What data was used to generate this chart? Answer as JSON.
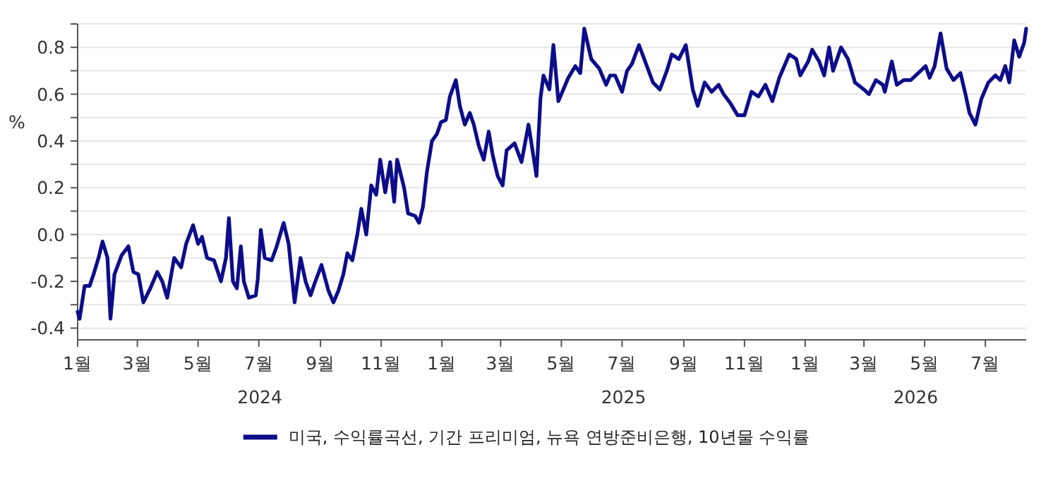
{
  "chart_data": {
    "type": "line",
    "ylabel": "%",
    "grid": "y",
    "legend": "bottom",
    "xlim": [
      "2024-01-01",
      "2026-08-11"
    ],
    "ylim": [
      -0.45,
      0.9
    ],
    "yticks": [
      {
        "value": -0.4,
        "label": "-0.4"
      },
      {
        "value": -0.3,
        "label": null
      },
      {
        "value": -0.2,
        "label": "-0.2"
      },
      {
        "value": -0.1,
        "label": null
      },
      {
        "value": 0,
        "label": "0.0"
      },
      {
        "value": 0.1,
        "label": null
      },
      {
        "value": 0.2,
        "label": "0.2"
      },
      {
        "value": 0.3,
        "label": null
      },
      {
        "value": 0.4,
        "label": "0.4"
      },
      {
        "value": 0.5,
        "label": null
      },
      {
        "value": 0.6,
        "label": "0.6"
      },
      {
        "value": 0.7,
        "label": null
      },
      {
        "value": 0.8,
        "label": "0.8"
      },
      {
        "value": 0.9,
        "label": null
      }
    ],
    "xticks": [
      {
        "value": "2024-01-01",
        "label": "1월"
      },
      {
        "value": "2024-03-01",
        "label": "3월"
      },
      {
        "value": "2024-05-01",
        "label": "5월"
      },
      {
        "value": "2024-07-01",
        "label": "7월"
      },
      {
        "value": "2024-09-01",
        "label": "9월"
      },
      {
        "value": "2024-11-01",
        "label": "11월"
      },
      {
        "value": "2025-01-01",
        "label": "1월"
      },
      {
        "value": "2025-03-01",
        "label": "3월"
      },
      {
        "value": "2025-05-01",
        "label": "5월"
      },
      {
        "value": "2025-07-01",
        "label": "7월"
      },
      {
        "value": "2025-09-01",
        "label": "9월"
      },
      {
        "value": "2025-11-01",
        "label": "11월"
      },
      {
        "value": "2026-01-01",
        "label": "1월"
      },
      {
        "value": "2026-03-01",
        "label": "3월"
      },
      {
        "value": "2026-05-01",
        "label": "5월"
      },
      {
        "value": "2026-07-01",
        "label": "7월"
      }
    ],
    "annotations": [
      "2024",
      "2025",
      "2026"
    ],
    "x": [
      "2024-01-01",
      "2024-01-03",
      "2024-01-08",
      "2024-01-13",
      "2024-01-17",
      "2024-01-22",
      "2024-01-26",
      "2024-01-31",
      "2024-02-03",
      "2024-02-07",
      "2024-02-14",
      "2024-02-21",
      "2024-02-26",
      "2024-03-02",
      "2024-03-07",
      "2024-03-14",
      "2024-03-21",
      "2024-03-26",
      "2024-03-31",
      "2024-04-07",
      "2024-04-14",
      "2024-04-19",
      "2024-04-26",
      "2024-05-01",
      "2024-05-05",
      "2024-05-10",
      "2024-05-17",
      "2024-05-24",
      "2024-05-29",
      "2024-06-01",
      "2024-06-05",
      "2024-06-09",
      "2024-06-13",
      "2024-06-16",
      "2024-06-21",
      "2024-06-28",
      "2024-06-30",
      "2024-07-03",
      "2024-07-07",
      "2024-07-14",
      "2024-07-19",
      "2024-07-26",
      "2024-07-31",
      "2024-08-06",
      "2024-08-12",
      "2024-08-17",
      "2024-08-22",
      "2024-08-26",
      "2024-09-02",
      "2024-09-09",
      "2024-09-14",
      "2024-09-19",
      "2024-09-24",
      "2024-09-28",
      "2024-10-03",
      "2024-10-08",
      "2024-10-12",
      "2024-10-17",
      "2024-10-22",
      "2024-10-27",
      "2024-10-31",
      "2024-11-05",
      "2024-11-10",
      "2024-11-14",
      "2024-11-17",
      "2024-11-24",
      "2024-11-28",
      "2024-12-05",
      "2024-12-09",
      "2024-12-13",
      "2024-12-17",
      "2024-12-22",
      "2024-12-27",
      "2024-12-31",
      "2025-01-05",
      "2025-01-09",
      "2025-01-15",
      "2025-01-19",
      "2025-01-24",
      "2025-01-29",
      "2025-02-02",
      "2025-02-07",
      "2025-02-12",
      "2025-02-17",
      "2025-02-21",
      "2025-02-26",
      "2025-03-03",
      "2025-03-07",
      "2025-03-15",
      "2025-03-22",
      "2025-03-29",
      "2025-04-06",
      "2025-04-10",
      "2025-04-13",
      "2025-04-19",
      "2025-04-23",
      "2025-04-28",
      "2025-05-08",
      "2025-05-15",
      "2025-05-20",
      "2025-05-24",
      "2025-05-31",
      "2025-06-08",
      "2025-06-15",
      "2025-06-19",
      "2025-06-24",
      "2025-07-01",
      "2025-07-06",
      "2025-07-11",
      "2025-07-18",
      "2025-07-25",
      "2025-08-01",
      "2025-08-08",
      "2025-08-15",
      "2025-08-20",
      "2025-08-27",
      "2025-09-03",
      "2025-09-10",
      "2025-09-15",
      "2025-09-22",
      "2025-09-29",
      "2025-10-06",
      "2025-10-11",
      "2025-10-18",
      "2025-10-25",
      "2025-11-01",
      "2025-11-08",
      "2025-11-15",
      "2025-11-22",
      "2025-11-29",
      "2025-12-06",
      "2025-12-16",
      "2025-12-23",
      "2025-12-27",
      "2026-01-04",
      "2026-01-08",
      "2026-01-15",
      "2026-01-20",
      "2026-01-25",
      "2026-01-29",
      "2026-02-06",
      "2026-02-13",
      "2026-02-20",
      "2026-03-01",
      "2026-03-06",
      "2026-03-13",
      "2026-03-20",
      "2026-03-22",
      "2026-03-29",
      "2026-04-03",
      "2026-04-10",
      "2026-04-17",
      "2026-04-27",
      "2026-05-02",
      "2026-05-06",
      "2026-05-11",
      "2026-05-17",
      "2026-05-23",
      "2026-05-30",
      "2026-06-06",
      "2026-06-11",
      "2026-06-15",
      "2026-06-21",
      "2026-06-27",
      "2026-07-04",
      "2026-07-11",
      "2026-07-16",
      "2026-07-21",
      "2026-07-25",
      "2026-07-30",
      "2026-08-04",
      "2026-08-09",
      "2026-08-11"
    ],
    "series": [
      {
        "name": "미국, 수익률곡선, 기간 프리미엄, 뉴욕 연방준비은행, 10년물 수익률",
        "color": "#0d0d8a",
        "values": [
          -0.33,
          -0.36,
          -0.22,
          -0.22,
          -0.17,
          -0.1,
          -0.03,
          -0.1,
          -0.36,
          -0.17,
          -0.09,
          -0.05,
          -0.16,
          -0.17,
          -0.29,
          -0.23,
          -0.16,
          -0.2,
          -0.27,
          -0.1,
          -0.14,
          -0.04,
          0.04,
          -0.04,
          -0.01,
          -0.1,
          -0.11,
          -0.2,
          -0.1,
          0.07,
          -0.2,
          -0.23,
          -0.05,
          -0.2,
          -0.27,
          -0.26,
          -0.19,
          0.02,
          -0.1,
          -0.11,
          -0.05,
          0.05,
          -0.04,
          -0.29,
          -0.1,
          -0.2,
          -0.26,
          -0.21,
          -0.13,
          -0.24,
          -0.29,
          -0.24,
          -0.17,
          -0.08,
          -0.11,
          0.0,
          0.11,
          0.0,
          0.21,
          0.17,
          0.32,
          0.18,
          0.31,
          0.14,
          0.32,
          0.2,
          0.09,
          0.08,
          0.05,
          0.12,
          0.27,
          0.4,
          0.43,
          0.48,
          0.49,
          0.59,
          0.66,
          0.55,
          0.47,
          0.52,
          0.47,
          0.38,
          0.32,
          0.44,
          0.34,
          0.25,
          0.21,
          0.36,
          0.39,
          0.31,
          0.47,
          0.25,
          0.58,
          0.68,
          0.62,
          0.81,
          0.57,
          0.67,
          0.72,
          0.69,
          0.88,
          0.75,
          0.71,
          0.64,
          0.68,
          0.68,
          0.61,
          0.7,
          0.73,
          0.81,
          0.73,
          0.65,
          0.62,
          0.7,
          0.77,
          0.75,
          0.81,
          0.62,
          0.55,
          0.65,
          0.61,
          0.64,
          0.6,
          0.56,
          0.51,
          0.51,
          0.61,
          0.59,
          0.64,
          0.57,
          0.67,
          0.77,
          0.75,
          0.68,
          0.74,
          0.79,
          0.74,
          0.68,
          0.8,
          0.7,
          0.8,
          0.75,
          0.65,
          0.62,
          0.6,
          0.66,
          0.64,
          0.61,
          0.74,
          0.64,
          0.66,
          0.66,
          0.7,
          0.72,
          0.67,
          0.72,
          0.86,
          0.71,
          0.66,
          0.69,
          0.6,
          0.52,
          0.47,
          0.58,
          0.65,
          0.68,
          0.66,
          0.72,
          0.65,
          0.83,
          0.76,
          0.82,
          0.88
        ]
      }
    ]
  }
}
